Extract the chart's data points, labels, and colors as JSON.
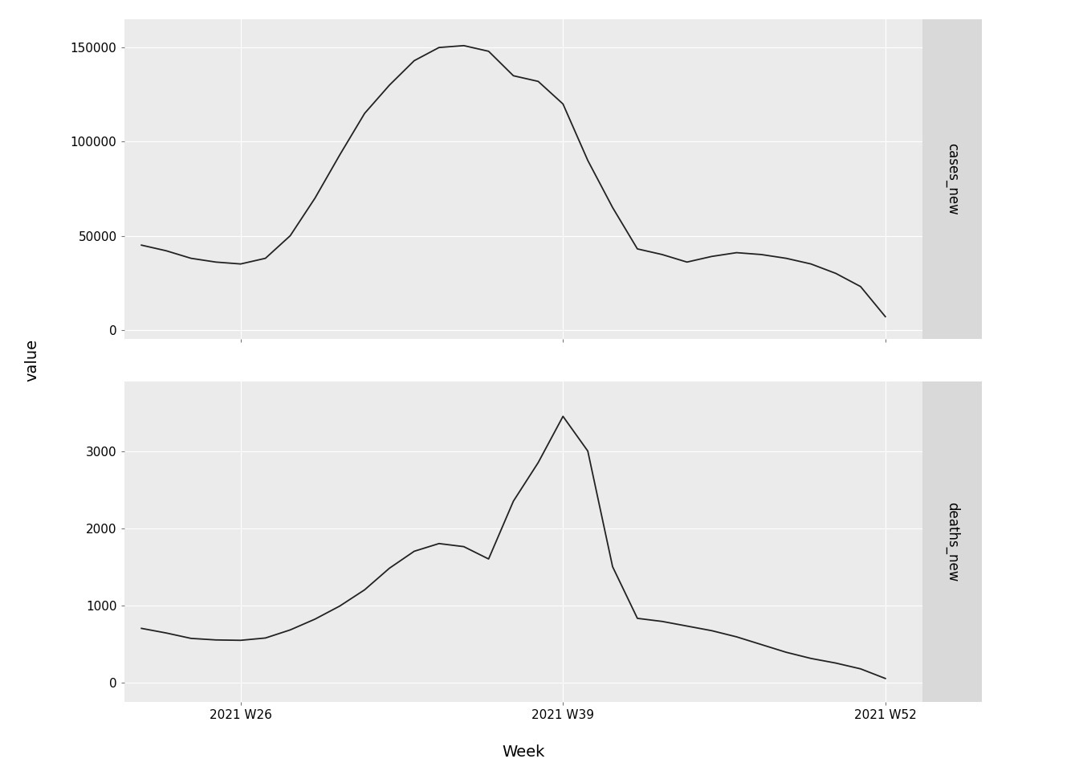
{
  "xlabel": "Week",
  "ylabel": "value",
  "panel1_label": "cases_new",
  "panel2_label": "deaths_new",
  "plot_bg": "#EBEBEB",
  "fig_bg": "#FFFFFF",
  "strip_bg": "#D9D9D9",
  "line_color": "#222222",
  "grid_color": "#FFFFFF",
  "weeks": [
    22,
    23,
    24,
    25,
    26,
    27,
    28,
    29,
    30,
    31,
    32,
    33,
    34,
    35,
    36,
    37,
    38,
    39,
    40,
    41,
    42,
    43,
    44,
    45,
    46,
    47,
    48,
    49,
    50,
    51,
    52
  ],
  "cases_new": [
    45000,
    42000,
    38000,
    36000,
    35000,
    38000,
    50000,
    70000,
    93000,
    115000,
    130000,
    143000,
    150000,
    151000,
    148000,
    135000,
    132000,
    120000,
    90000,
    65000,
    43000,
    40000,
    36000,
    39000,
    41000,
    40000,
    38000,
    35000,
    30000,
    23000,
    7000
  ],
  "deaths_new": [
    700,
    640,
    570,
    550,
    545,
    575,
    680,
    820,
    990,
    1200,
    1480,
    1700,
    1800,
    1760,
    1600,
    2350,
    2850,
    3450,
    3000,
    1500,
    830,
    790,
    730,
    670,
    590,
    490,
    390,
    310,
    250,
    175,
    50
  ],
  "xtick_positions": [
    26,
    39,
    52
  ],
  "xtick_labels": [
    "2021 W26",
    "2021 W39",
    "2021 W52"
  ],
  "cases_yticks": [
    0,
    50000,
    100000,
    150000
  ],
  "deaths_yticks": [
    0,
    1000,
    2000,
    3000
  ],
  "cases_ylim": [
    -5000,
    165000
  ],
  "deaths_ylim": [
    -250,
    3900
  ],
  "xlim": [
    21.3,
    53.5
  ],
  "tick_fontsize": 11,
  "label_fontsize": 14,
  "strip_fontsize": 12,
  "linewidth": 1.3
}
